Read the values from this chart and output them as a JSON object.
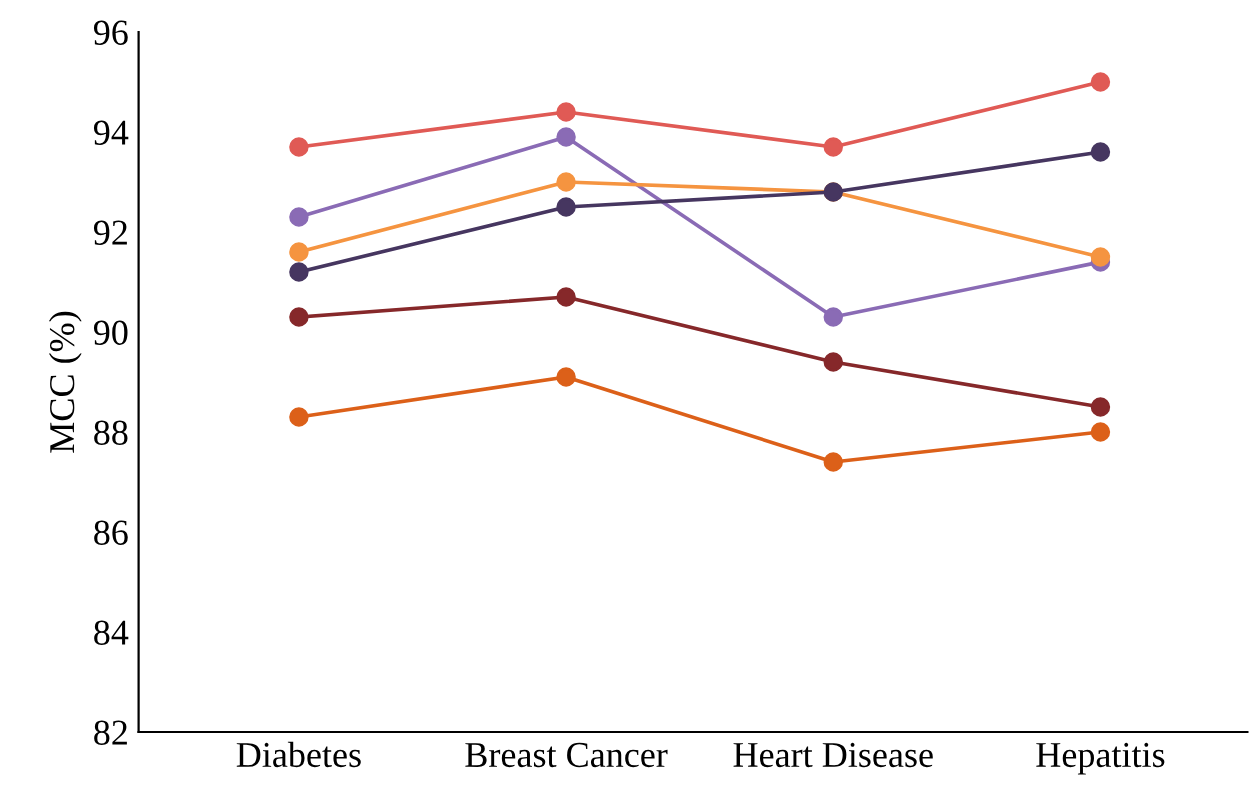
{
  "chart_data": {
    "type": "line",
    "ylabel": "MCC (%)",
    "categories": [
      "Diabetes",
      "Breast Cancer",
      "Heart Disease",
      "Hepatitis"
    ],
    "ylim": [
      82,
      96
    ],
    "yticks": [
      82,
      84,
      86,
      88,
      90,
      92,
      94,
      96
    ],
    "grid": false,
    "legend": false,
    "marker": "circle",
    "line_style": "solid",
    "series": [
      {
        "color": "#e05a55",
        "values": [
          93.7,
          94.4,
          93.7,
          95.0
        ]
      },
      {
        "color": "#8a6bb5",
        "values": [
          92.3,
          93.9,
          90.3,
          91.4
        ]
      },
      {
        "color": "#f59440",
        "values": [
          91.6,
          93.0,
          92.8,
          91.5
        ]
      },
      {
        "color": "#463660",
        "values": [
          91.2,
          92.5,
          92.8,
          93.6
        ]
      },
      {
        "color": "#86282a",
        "values": [
          90.3,
          90.7,
          89.4,
          88.5
        ]
      },
      {
        "color": "#dc6019",
        "values": [
          88.3,
          89.1,
          87.4,
          88.0
        ]
      }
    ]
  }
}
